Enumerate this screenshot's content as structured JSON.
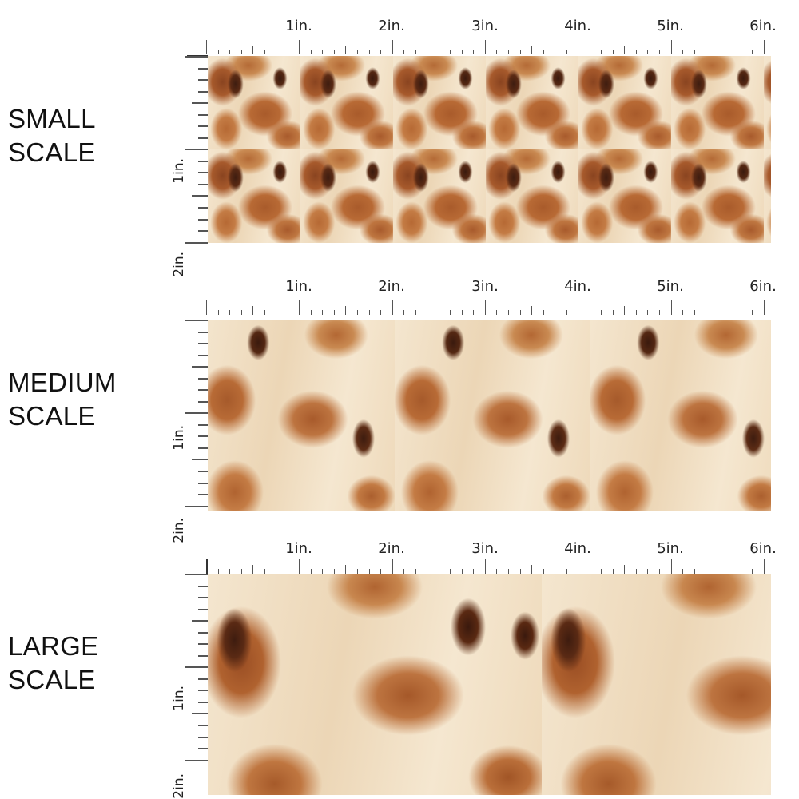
{
  "ruler": {
    "horizontal_labels": [
      "1in.",
      "2in.",
      "3in.",
      "4in.",
      "5in.",
      "6in."
    ],
    "vertical_labels": [
      "1in.",
      "2in."
    ],
    "unit": "in."
  },
  "panels": [
    {
      "id": "small",
      "label_line1": "SMALL",
      "label_line2": "SCALE",
      "repeat_width_in": 1.6,
      "repeat_height_in": 1.0
    },
    {
      "id": "medium",
      "label_line1": "MEDIUM",
      "label_line2": "SCALE",
      "repeat_width_in": 2.1,
      "repeat_height_in": 2.0
    },
    {
      "id": "large",
      "label_line1": "LARGE",
      "label_line2": "SCALE",
      "repeat_width_in": 3.6,
      "repeat_height_in": 2.4
    }
  ],
  "colors": {
    "cream": "#f3e3c9",
    "tan": "#c98a4f",
    "rust": "#a9592a",
    "dark_brown": "#4a2313",
    "ruler_ink": "#555555",
    "label_ink": "#111111"
  }
}
